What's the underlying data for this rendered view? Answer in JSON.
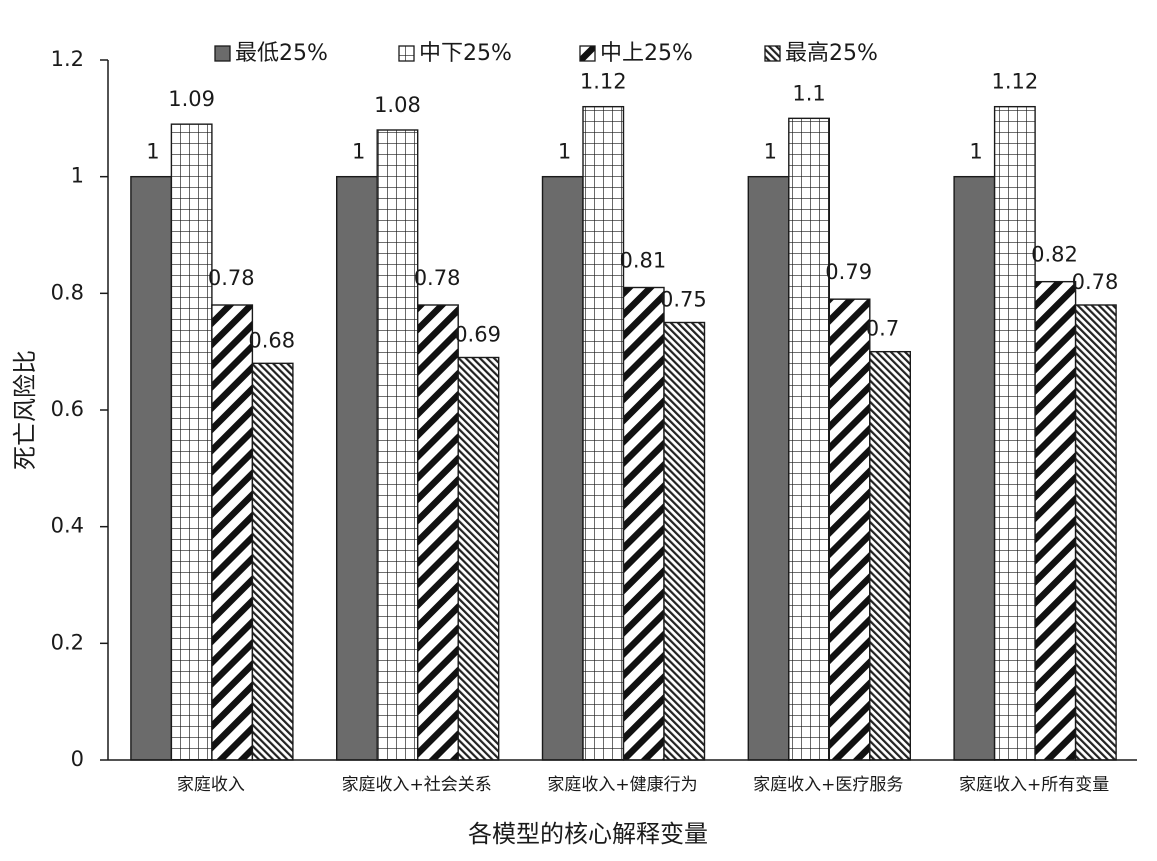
{
  "chart_data": {
    "type": "bar",
    "title": "",
    "xlabel": "各模型的核心解释变量",
    "ylabel": "死亡风险比",
    "ylim": [
      0,
      1.2
    ],
    "yticks": [
      0,
      0.2,
      0.4,
      0.6,
      0.8,
      1,
      1.2
    ],
    "ytick_labels": [
      "0",
      "0.2",
      "0.4",
      "0.6",
      "0.8",
      "1",
      "1.2"
    ],
    "grid": false,
    "legend_position": "top",
    "categories": [
      "家庭收入",
      "家庭收入+社会关系",
      "家庭收入+健康行为",
      "家庭收入+医疗服务",
      "家庭收入+所有变量"
    ],
    "series": [
      {
        "name": "最低25%",
        "values": [
          1,
          1,
          1,
          1,
          1
        ],
        "labels": [
          "1",
          "1",
          "1",
          "1",
          "1"
        ],
        "fill": "solid-gray",
        "color": "#6b6b6b"
      },
      {
        "name": "中下25%",
        "values": [
          1.09,
          1.08,
          1.12,
          1.1,
          1.12
        ],
        "labels": [
          "1.09",
          "1.08",
          "1.12",
          "1.1",
          "1.12"
        ],
        "fill": "grid",
        "color": "#ffffff"
      },
      {
        "name": "中上25%",
        "values": [
          0.78,
          0.78,
          0.81,
          0.79,
          0.82
        ],
        "labels": [
          "0.78",
          "0.78",
          "0.81",
          "0.79",
          "0.82"
        ],
        "fill": "wide-diagonal",
        "color": "#ffffff"
      },
      {
        "name": "最高25%",
        "values": [
          0.68,
          0.69,
          0.75,
          0.7,
          0.78
        ],
        "labels": [
          "0.68",
          "0.69",
          "0.75",
          "0.7",
          "0.78"
        ],
        "fill": "dense-diagonal",
        "color": "#ffffff"
      }
    ]
  }
}
